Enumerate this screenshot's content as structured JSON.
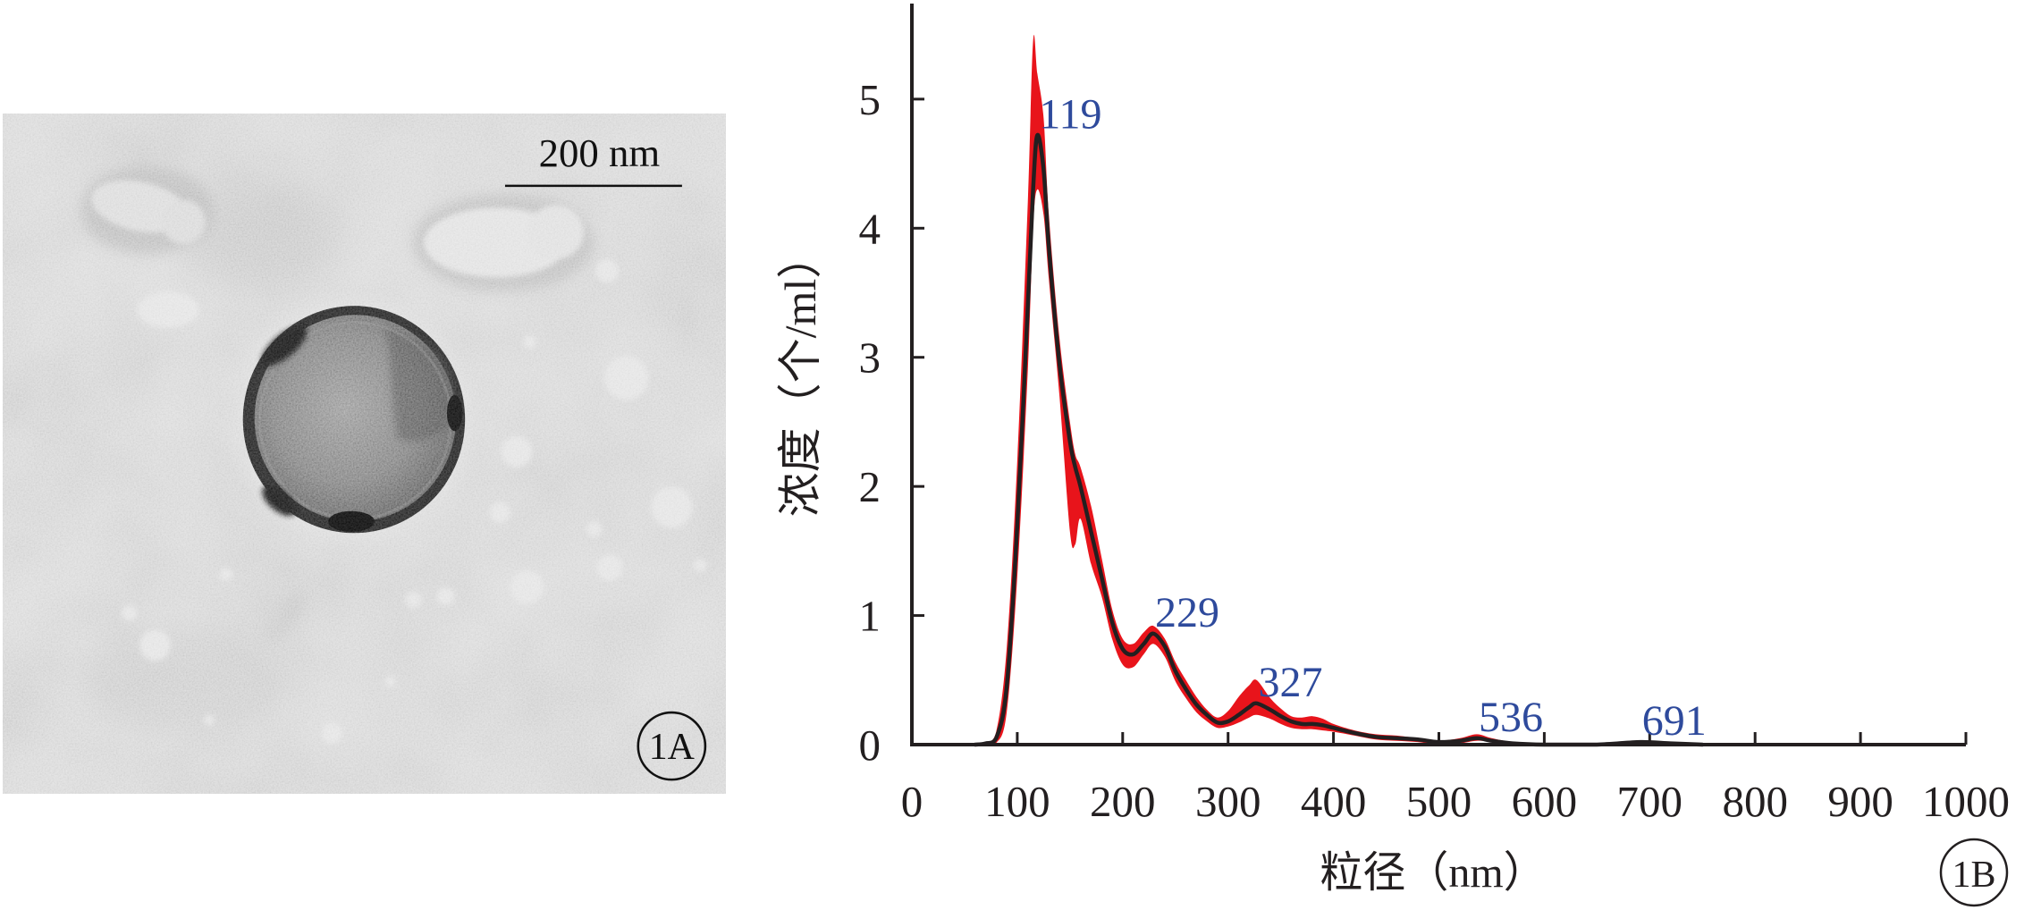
{
  "figure": {
    "panel_a": {
      "label": "1A",
      "scale_bar": "200 nm"
    },
    "panel_b": {
      "label": "1B"
    }
  },
  "colors": {
    "band": "#e8141b",
    "mean_line": "#231f20",
    "peak_label": "#2e4a9c",
    "axis": "#231f20"
  },
  "chart_data": {
    "type": "line",
    "xlabel": "粒径（nm）",
    "ylabel": "浓度（个/ml）",
    "xlim": [
      0,
      1000
    ],
    "ylim": [
      0,
      5.74
    ],
    "xticks": [
      0,
      100,
      200,
      300,
      400,
      500,
      600,
      700,
      800,
      900,
      1000
    ],
    "yticks": [
      0,
      1,
      2,
      3,
      4,
      5
    ],
    "grid": false,
    "x": [
      60,
      70,
      80,
      90,
      100,
      110,
      115,
      119,
      125,
      130,
      140,
      150,
      155,
      160,
      170,
      180,
      190,
      200,
      210,
      220,
      229,
      240,
      250,
      260,
      270,
      280,
      290,
      300,
      310,
      320,
      327,
      340,
      350,
      360,
      370,
      380,
      390,
      400,
      420,
      440,
      460,
      480,
      500,
      520,
      536,
      550,
      570,
      600,
      650,
      691,
      720,
      750
    ],
    "series": [
      {
        "values": [
          0,
          0.01,
          0.05,
          0.45,
          1.7,
          3.4,
          4.3,
          4.72,
          4.45,
          3.85,
          2.95,
          2.35,
          2.15,
          2.0,
          1.65,
          1.3,
          0.95,
          0.74,
          0.7,
          0.78,
          0.86,
          0.76,
          0.57,
          0.43,
          0.31,
          0.23,
          0.17,
          0.18,
          0.23,
          0.29,
          0.32,
          0.27,
          0.22,
          0.18,
          0.16,
          0.16,
          0.15,
          0.13,
          0.09,
          0.06,
          0.05,
          0.04,
          0.02,
          0.03,
          0.05,
          0.03,
          0.01,
          0,
          0,
          0.02,
          0.01,
          0
        ],
        "band_upper": [
          0,
          0.02,
          0.1,
          0.75,
          2.2,
          4.2,
          5.45,
          5.2,
          4.85,
          4.1,
          3.15,
          2.5,
          2.25,
          2.15,
          1.85,
          1.45,
          1.05,
          0.82,
          0.78,
          0.87,
          0.92,
          0.82,
          0.64,
          0.5,
          0.37,
          0.27,
          0.21,
          0.26,
          0.37,
          0.46,
          0.5,
          0.36,
          0.28,
          0.22,
          0.21,
          0.22,
          0.2,
          0.16,
          0.11,
          0.08,
          0.07,
          0.05,
          0.03,
          0.05,
          0.08,
          0.05,
          0.02,
          0.01,
          0.01,
          0.03,
          0.02,
          0
        ],
        "band_lower": [
          0,
          0,
          0.01,
          0.25,
          1.3,
          2.9,
          4.0,
          4.3,
          4.1,
          3.6,
          2.7,
          1.65,
          1.55,
          1.75,
          1.4,
          1.15,
          0.82,
          0.62,
          0.6,
          0.7,
          0.78,
          0.68,
          0.49,
          0.36,
          0.25,
          0.18,
          0.13,
          0.14,
          0.17,
          0.21,
          0.23,
          0.2,
          0.16,
          0.13,
          0.12,
          0.12,
          0.11,
          0.1,
          0.07,
          0.04,
          0.03,
          0.02,
          0,
          0.01,
          0.03,
          0.02,
          0,
          0,
          0,
          0.01,
          0,
          0
        ]
      }
    ],
    "annotations": [
      {
        "text": "119",
        "x": 119,
        "y": 4.72
      },
      {
        "text": "229",
        "x": 229,
        "y": 0.86
      },
      {
        "text": "327",
        "x": 327,
        "y": 0.32
      },
      {
        "text": "536",
        "x": 536,
        "y": 0.05
      },
      {
        "text": "691",
        "x": 691,
        "y": 0.02
      }
    ]
  }
}
